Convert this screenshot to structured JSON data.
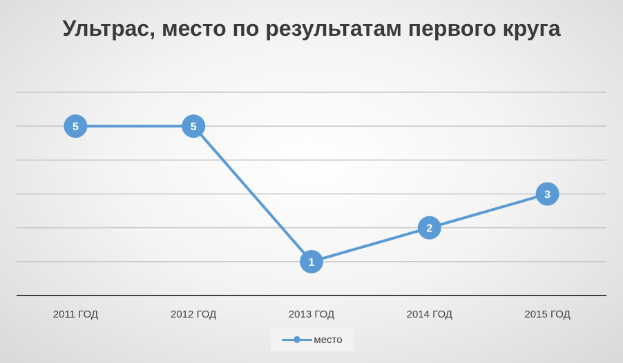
{
  "chart_data": {
    "type": "line",
    "title": "Ультрас, место по результатам первого круга",
    "categories": [
      "2011 ГОД",
      "2012 ГОД",
      "2013 ГОД",
      "2014 ГОД",
      "2015 ГОД"
    ],
    "series": [
      {
        "name": "место",
        "values": [
          5,
          5,
          1,
          2,
          3
        ],
        "color": "#5b9bd5"
      }
    ],
    "ylim": [
      0,
      6
    ],
    "grid": true,
    "legend": "bottom",
    "data_labels": true
  }
}
